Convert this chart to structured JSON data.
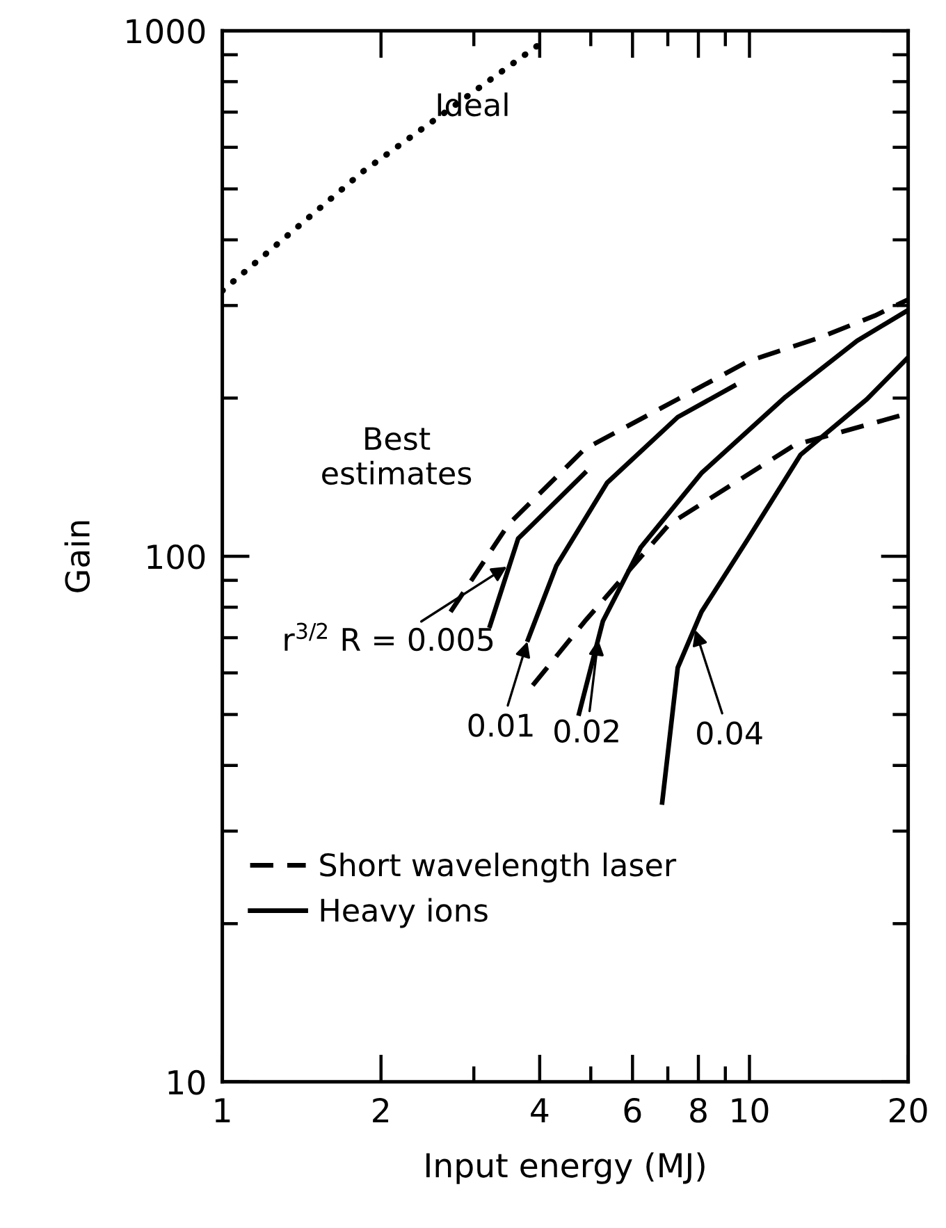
{
  "chart_data": {
    "type": "line",
    "xlabel": "Input energy (MJ)",
    "ylabel": "Gain",
    "log": "xy",
    "xlim": [
      1,
      20
    ],
    "ylim": [
      10,
      1000
    ],
    "xticks": [
      1,
      2,
      {
        "value": 3,
        "label": null
      },
      4,
      {
        "value": 5,
        "label": null
      },
      6,
      {
        "value": 7,
        "label": null
      },
      8,
      {
        "value": 9,
        "label": null
      },
      10,
      20
    ],
    "yticks": [
      10,
      {
        "value": 20,
        "label": null
      },
      {
        "value": 30,
        "label": null
      },
      {
        "value": 40,
        "label": null
      },
      {
        "value": 50,
        "label": null
      },
      {
        "value": 60,
        "label": null
      },
      {
        "value": 70,
        "label": null
      },
      {
        "value": 80,
        "label": null
      },
      {
        "value": 90,
        "label": null
      },
      100,
      {
        "value": 200,
        "label": null
      },
      {
        "value": 300,
        "label": null
      },
      {
        "value": 400,
        "label": null
      },
      {
        "value": 500,
        "label": null
      },
      {
        "value": 600,
        "label": null
      },
      {
        "value": 700,
        "label": null
      },
      {
        "value": 800,
        "label": null
      },
      {
        "value": 900,
        "label": null
      },
      1000
    ],
    "grid": false,
    "legend": "bottom left",
    "marker": "none",
    "series": [
      {
        "color": "#000000",
        "line_style": "dotted",
        "x": [
          1,
          1.85,
          4.1
        ],
        "values": [
          320,
          540,
          960
        ]
      },
      {
        "name": "Short wavelength laser",
        "color": "#000000",
        "line_style": "dashed",
        "x": [
          2.71,
          3.49,
          4.87,
          7.31,
          9.94,
          13.5,
          17.3,
          20
        ],
        "values": [
          78.4,
          115,
          160,
          199,
          235,
          260,
          287,
          308
        ]
      },
      {
        "color": "#000000",
        "line_style": "dashed",
        "x": [
          3.88,
          4.87,
          7.04,
          12.2,
          20
        ],
        "values": [
          56.8,
          75.2,
          115,
          163,
          187
        ]
      },
      {
        "name": "Heavy ions",
        "color": "#000000",
        "line_style": "solid",
        "x": [
          3.22,
          3.64,
          4.87
        ],
        "values": [
          73.8,
          108,
          144
        ]
      },
      {
        "color": "#000000",
        "line_style": "solid",
        "x": [
          3.8,
          4.3,
          5.37,
          7.31,
          9.35
        ],
        "values": [
          69.4,
          95.8,
          138,
          184,
          211
        ]
      },
      {
        "color": "#000000",
        "line_style": "solid",
        "x": [
          4.75,
          5.27,
          6.22,
          8.11,
          11.7,
          16.0,
          20
        ],
        "values": [
          50.2,
          75.2,
          104,
          144,
          201,
          257,
          294
        ]
      },
      {
        "color": "#000000",
        "line_style": "solid",
        "x": [
          6.83,
          7.31,
          8.11,
          9.94,
          12.5,
          16.7,
          20
        ],
        "values": [
          34.0,
          61.4,
          78.4,
          108,
          156,
          199,
          239
        ]
      }
    ],
    "annotations": [
      "Ideal",
      "Best\nestimates",
      {
        "text": "r$^{3/2}$ R = 0.005",
        "x": 3.49,
        "y": 96
      },
      {
        "text": "0.01",
        "x": 3.8,
        "y": 69.4
      },
      {
        "text": "0.02",
        "x": 5.17,
        "y": 70
      },
      {
        "text": "0.04",
        "x": 7.87,
        "y": 73
      }
    ]
  }
}
